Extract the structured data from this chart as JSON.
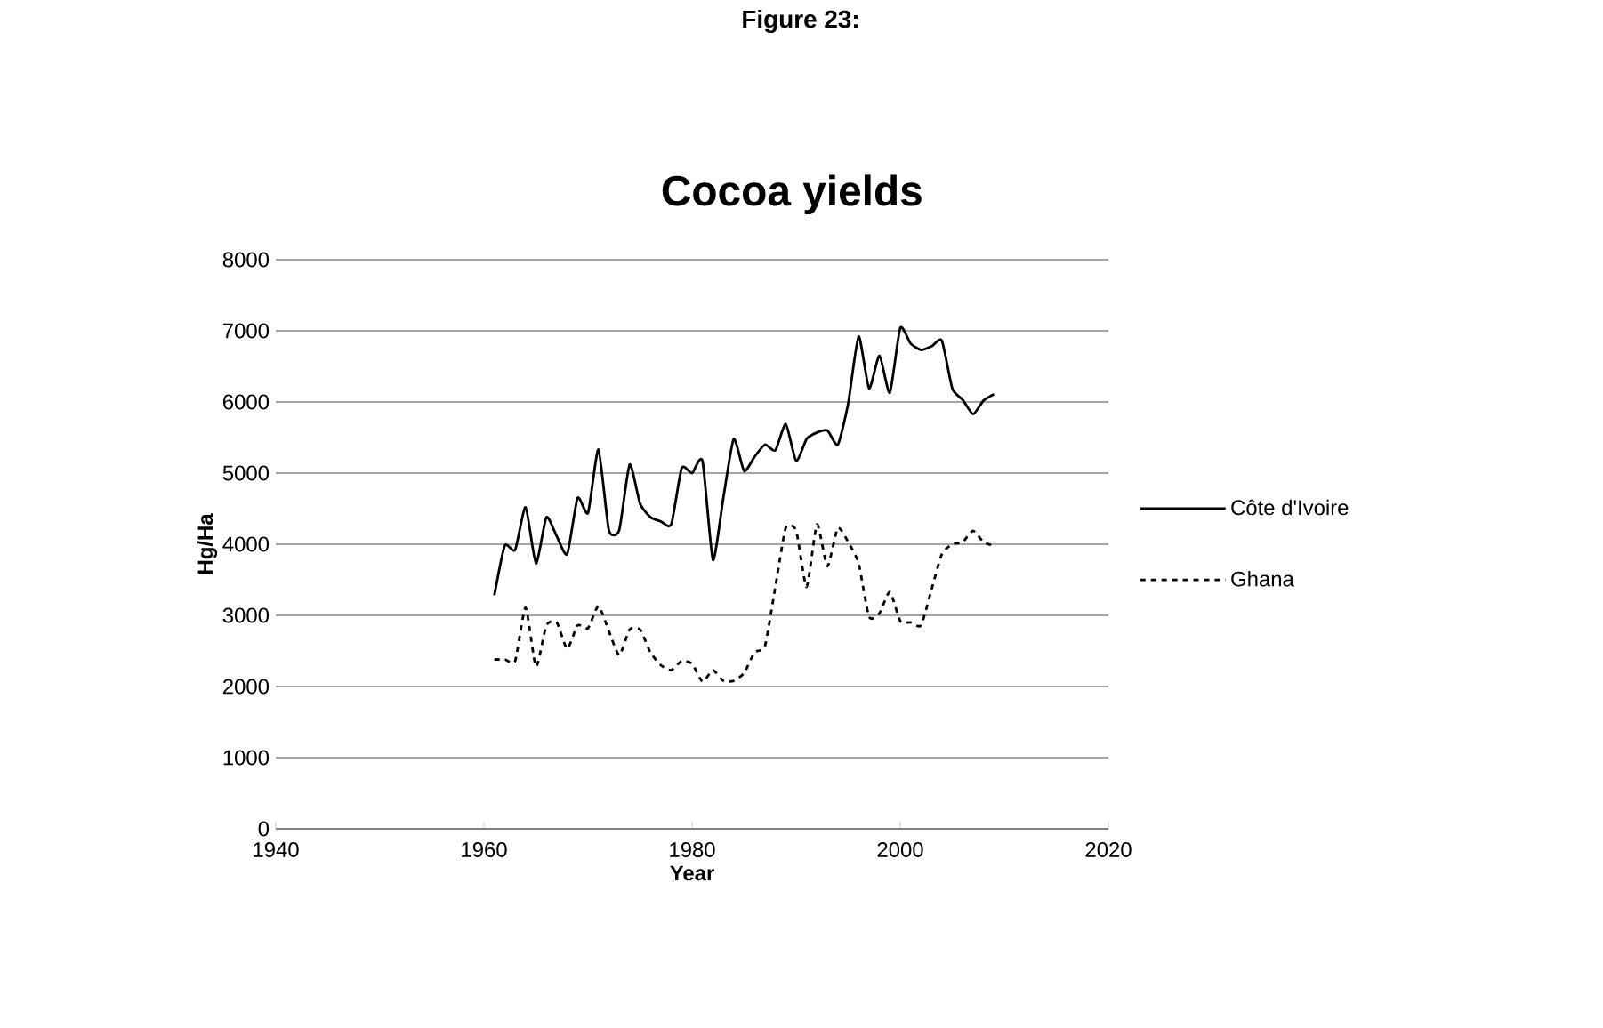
{
  "chart_data": {
    "type": "line",
    "title": "Cocoa yields",
    "xlabel": "Year",
    "ylabel": "Hg/Ha",
    "annotations": [
      "Figure 23:"
    ],
    "x": [
      1961,
      1962,
      1963,
      1964,
      1965,
      1966,
      1967,
      1968,
      1969,
      1970,
      1971,
      1972,
      1973,
      1974,
      1975,
      1976,
      1977,
      1978,
      1979,
      1980,
      1981,
      1982,
      1983,
      1984,
      1985,
      1986,
      1987,
      1988,
      1989,
      1990,
      1991,
      1992,
      1993,
      1994,
      1995,
      1996,
      1997,
      1998,
      1999,
      2000,
      2001,
      2002,
      2003,
      2004,
      2005,
      2006,
      2007,
      2008,
      2009
    ],
    "series": [
      {
        "name": "Côte d'Ivoire",
        "color": "#000000",
        "line_style": "solid",
        "values": [
          3280,
          3980,
          3920,
          4520,
          3730,
          4380,
          4110,
          3860,
          4650,
          4440,
          5330,
          4200,
          4200,
          5120,
          4570,
          4380,
          4320,
          4280,
          5070,
          5000,
          5170,
          3780,
          4650,
          5480,
          5030,
          5230,
          5400,
          5320,
          5690,
          5170,
          5480,
          5570,
          5600,
          5400,
          5980,
          6920,
          6190,
          6650,
          6130,
          7040,
          6820,
          6730,
          6780,
          6860,
          6190,
          6030,
          5830,
          6020,
          6110
        ]
      },
      {
        "name": "Ghana",
        "color": "#000000",
        "line_style": "dashed",
        "values": [
          2380,
          2380,
          2360,
          3110,
          2280,
          2860,
          2900,
          2530,
          2860,
          2820,
          3130,
          2780,
          2440,
          2800,
          2800,
          2480,
          2300,
          2230,
          2360,
          2320,
          2070,
          2230,
          2080,
          2080,
          2190,
          2480,
          2570,
          3400,
          4230,
          4190,
          3400,
          4280,
          3690,
          4230,
          4030,
          3730,
          2980,
          3030,
          3330,
          2920,
          2900,
          2860,
          3360,
          3860,
          4000,
          4030,
          4190,
          4030,
          3980
        ]
      }
    ],
    "xlim": [
      1940,
      2020
    ],
    "xticks": [
      1940,
      1960,
      1980,
      2000,
      2020
    ],
    "ylim": [
      0,
      8000
    ],
    "yticks": [
      0,
      1000,
      2000,
      3000,
      4000,
      5000,
      6000,
      7000,
      8000
    ],
    "grid": "y",
    "legend": "right"
  }
}
